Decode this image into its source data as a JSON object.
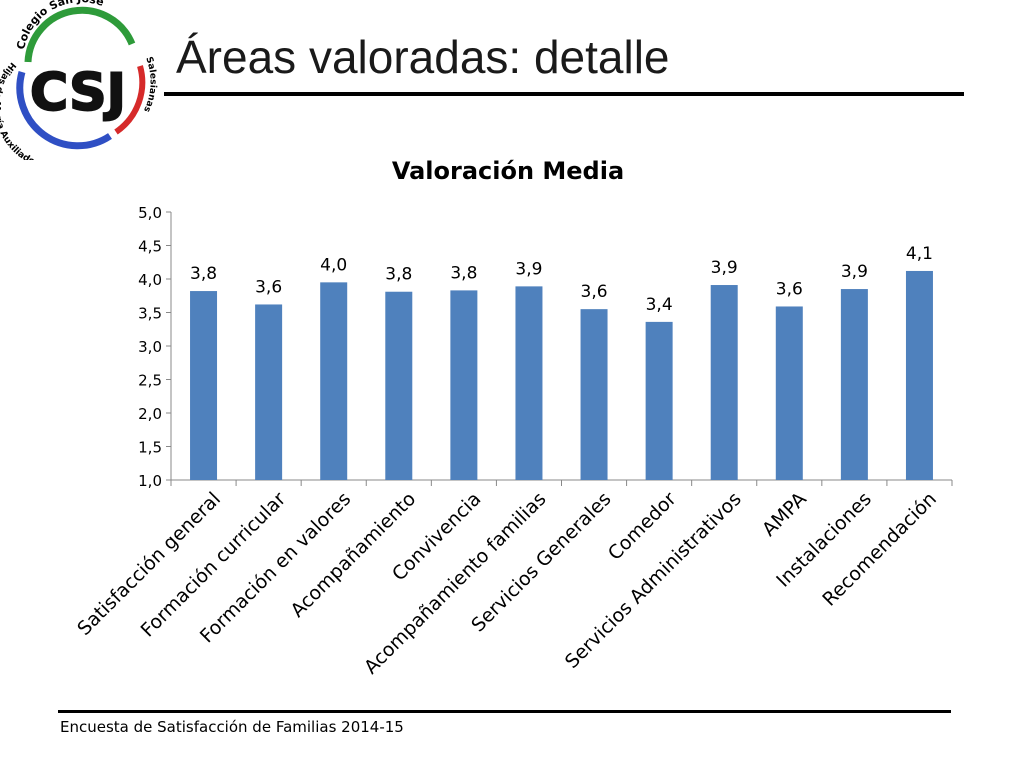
{
  "slide": {
    "title": "Áreas valoradas: detalle",
    "footer": "Encuesta  de Satisfacción de Familias 2014-15"
  },
  "logo": {
    "initials": "CSJ",
    "top_text": "Colegio San José",
    "left_text": "Hijas de María Auxiliadora",
    "right_text": "Salesianas",
    "colors": {
      "green": "#2e9b3a",
      "blue": "#2f4fc4",
      "red": "#d62a2a"
    }
  },
  "chart_data": {
    "type": "bar",
    "title": "Valoración Media",
    "categories": [
      "Satisfacción general",
      "Formación curricular",
      "Formación en valores",
      "Acompañamiento",
      "Convivencia",
      "Acompañamiento familias",
      "Servicios Generales",
      "Comedor",
      "Servicios Administrativos",
      "AMPA",
      "Instalaciones",
      "Recomendación"
    ],
    "values": [
      3.82,
      3.62,
      3.95,
      3.81,
      3.83,
      3.89,
      3.55,
      3.36,
      3.91,
      3.59,
      3.85,
      4.12
    ],
    "data_labels": [
      "3,8",
      "3,6",
      "4,0",
      "3,8",
      "3,8",
      "3,9",
      "3,6",
      "3,4",
      "3,9",
      "3,6",
      "3,9",
      "4,1"
    ],
    "ylim": [
      1.0,
      5.0
    ],
    "yticks": [
      "1,0",
      "1,5",
      "2,0",
      "2,5",
      "3,0",
      "3,5",
      "4,0",
      "4,5",
      "5,0"
    ],
    "bar_color": "#4f81bd",
    "grid": false
  }
}
